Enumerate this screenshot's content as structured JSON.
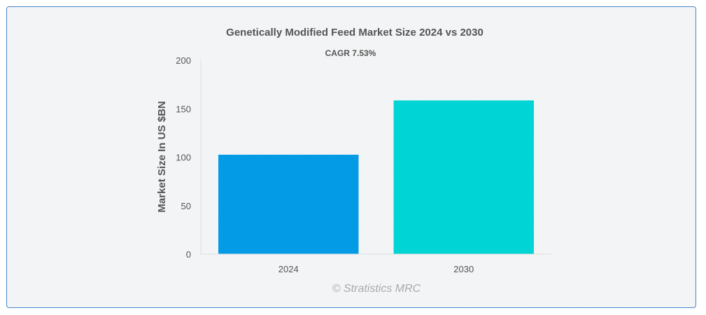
{
  "chart_data": {
    "type": "bar",
    "title": "Genetically Modified Feed Market Size 2024 vs 2030",
    "subtitle": "CAGR 7.53%",
    "ylabel": "Market Size In US $BN",
    "xlabel": "",
    "categories": [
      "2024",
      "2030"
    ],
    "values": [
      102.5,
      158.5
    ],
    "colors": [
      "#039be5",
      "#00d4d4"
    ],
    "ylim": [
      0,
      200
    ],
    "yticks": [
      0,
      50,
      100,
      150,
      200
    ],
    "grid": false,
    "legend": "none"
  },
  "watermark": "© Stratistics MRC"
}
